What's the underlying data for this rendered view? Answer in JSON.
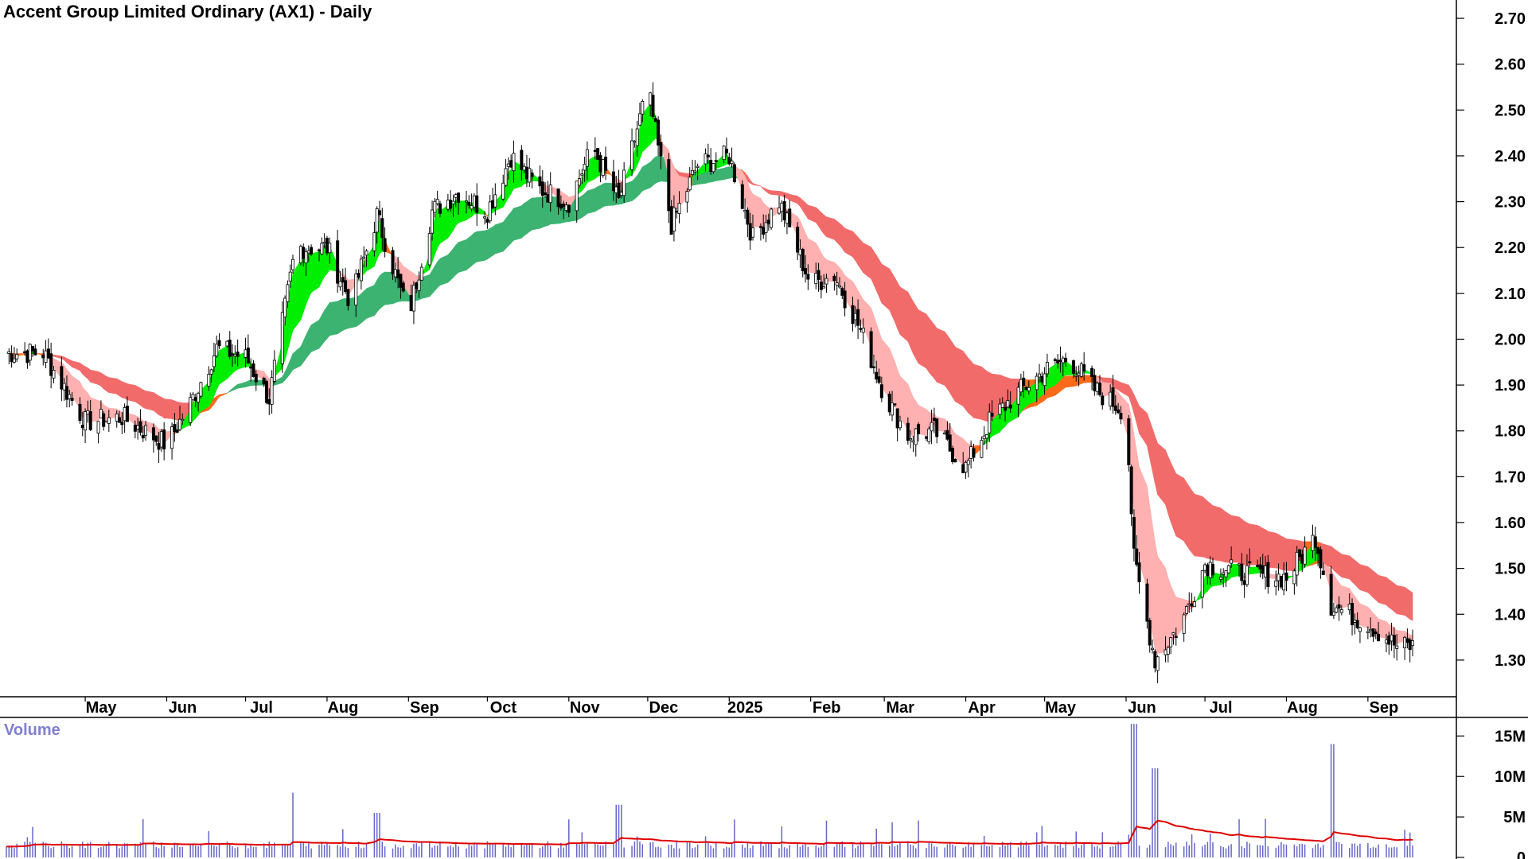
{
  "chart_data": {
    "type": "candlestick",
    "title": "Accent Group Limited Ordinary (AX1) - Daily",
    "price_axis": {
      "ylim": [
        1.22,
        2.74
      ],
      "ticks": [
        "2.70",
        "2.60",
        "2.50",
        "2.40",
        "2.30",
        "2.20",
        "2.10",
        "2.00",
        "1.90",
        "1.80",
        "1.70",
        "1.60",
        "1.50",
        "1.40",
        "1.30"
      ]
    },
    "x_axis": {
      "labels": [
        "May",
        "Jun",
        "Jul",
        "Aug",
        "Sep",
        "Oct",
        "Nov",
        "Dec",
        "2025",
        "Feb",
        "Mar",
        "Apr",
        "May",
        "Jun",
        "Jul",
        "Aug",
        "Sep"
      ]
    },
    "price_series": [
      {
        "date": "2024-04-15",
        "close": 1.97
      },
      {
        "date": "2024-05-01",
        "close": 1.82
      },
      {
        "date": "2024-05-15",
        "close": 1.83
      },
      {
        "date": "2024-06-01",
        "close": 1.77
      },
      {
        "date": "2024-06-10",
        "close": 1.86
      },
      {
        "date": "2024-06-20",
        "close": 1.98
      },
      {
        "date": "2024-07-01",
        "close": 1.96
      },
      {
        "date": "2024-07-10",
        "close": 1.87
      },
      {
        "date": "2024-07-20",
        "close": 2.2
      },
      {
        "date": "2024-08-01",
        "close": 2.2
      },
      {
        "date": "2024-08-10",
        "close": 2.08
      },
      {
        "date": "2024-08-20",
        "close": 2.27
      },
      {
        "date": "2024-09-01",
        "close": 2.05
      },
      {
        "date": "2024-09-10",
        "close": 2.28
      },
      {
        "date": "2024-09-20",
        "close": 2.32
      },
      {
        "date": "2024-10-01",
        "close": 2.28
      },
      {
        "date": "2024-10-10",
        "close": 2.4
      },
      {
        "date": "2024-10-20",
        "close": 2.33
      },
      {
        "date": "2024-11-01",
        "close": 2.3
      },
      {
        "date": "2024-11-10",
        "close": 2.42
      },
      {
        "date": "2024-11-20",
        "close": 2.3
      },
      {
        "date": "2024-12-01",
        "close": 2.55
      },
      {
        "date": "2024-12-10",
        "close": 2.25
      },
      {
        "date": "2024-12-20",
        "close": 2.38
      },
      {
        "date": "2025-01-01",
        "close": 2.4
      },
      {
        "date": "2025-01-10",
        "close": 2.22
      },
      {
        "date": "2025-01-20",
        "close": 2.3
      },
      {
        "date": "2025-02-01",
        "close": 2.12
      },
      {
        "date": "2025-02-10",
        "close": 2.14
      },
      {
        "date": "2025-02-20",
        "close": 2.02
      },
      {
        "date": "2025-03-01",
        "close": 1.88
      },
      {
        "date": "2025-03-10",
        "close": 1.79
      },
      {
        "date": "2025-03-20",
        "close": 1.8
      },
      {
        "date": "2025-04-01",
        "close": 1.72
      },
      {
        "date": "2025-04-10",
        "close": 1.82
      },
      {
        "date": "2025-04-20",
        "close": 1.88
      },
      {
        "date": "2025-05-01",
        "close": 1.93
      },
      {
        "date": "2025-05-10",
        "close": 1.96
      },
      {
        "date": "2025-05-20",
        "close": 1.89
      },
      {
        "date": "2025-06-01",
        "close": 1.84
      },
      {
        "date": "2025-06-04",
        "close": 1.52
      },
      {
        "date": "2025-06-12",
        "close": 1.3
      },
      {
        "date": "2025-06-22",
        "close": 1.38
      },
      {
        "date": "2025-07-01",
        "close": 1.51
      },
      {
        "date": "2025-07-15",
        "close": 1.49
      },
      {
        "date": "2025-08-01",
        "close": 1.48
      },
      {
        "date": "2025-08-12",
        "close": 1.57
      },
      {
        "date": "2025-08-18",
        "close": 1.42
      },
      {
        "date": "2025-09-01",
        "close": 1.38
      },
      {
        "date": "2025-09-12",
        "close": 1.33
      }
    ],
    "short_term_ma_band_colors": {
      "rising": "#00ee00",
      "falling_mild": "#ff6a1a",
      "falling": "#ffb0b0"
    },
    "long_term_ma_band_colors": {
      "rising": "#3cb371",
      "turning": "#ff6a1a",
      "falling": "#f26b6b"
    },
    "volume": {
      "label": "Volume",
      "ticks": [
        "15M",
        "10M",
        "5M",
        "0"
      ],
      "ylim": [
        0,
        17000000
      ],
      "bar_color": "#6666cc",
      "average_line_color": "#e00000",
      "spikes": [
        {
          "date": "2024-07-20",
          "value": 8000000
        },
        {
          "date": "2024-08-20",
          "value": 5500000
        },
        {
          "date": "2024-11-20",
          "value": 6500000
        },
        {
          "date": "2025-06-04",
          "value": 16500000
        },
        {
          "date": "2025-06-12",
          "value": 11000000
        },
        {
          "date": "2025-08-18",
          "value": 14000000
        }
      ]
    },
    "colors": {
      "candle": "#000000",
      "axis": "#000000",
      "volume_label": "#7f7fd0"
    }
  }
}
